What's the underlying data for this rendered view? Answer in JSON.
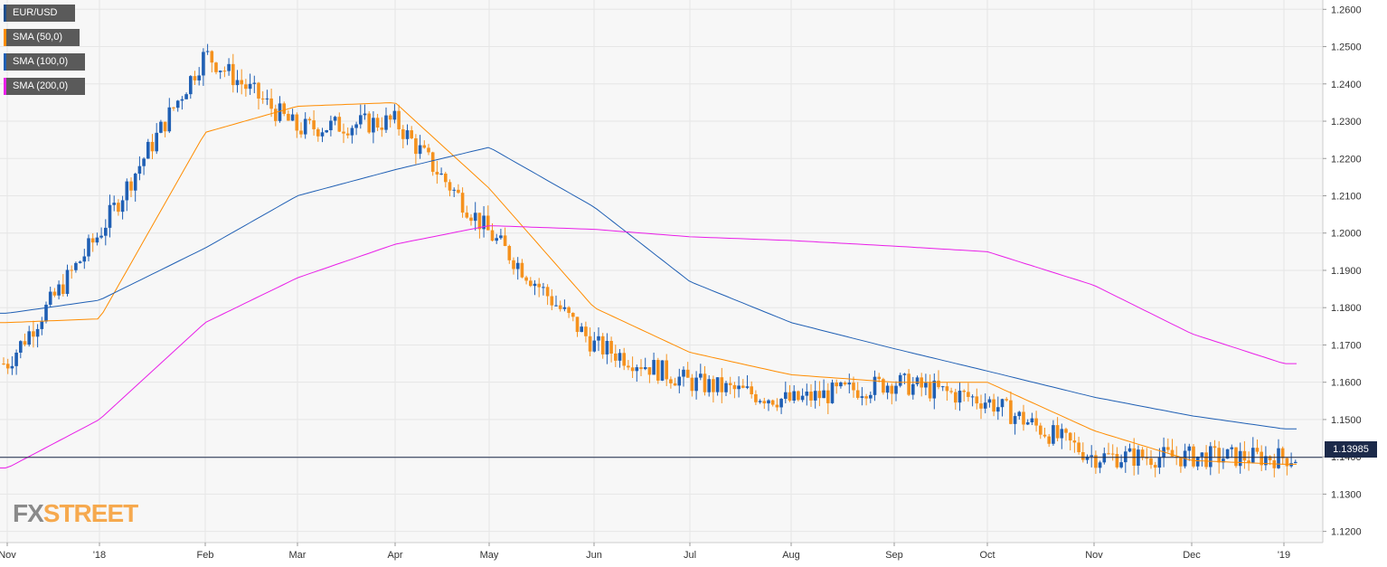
{
  "legend": {
    "items": [
      {
        "label": "EUR/USD",
        "color": "#1f4e8c"
      },
      {
        "label": "SMA (50,0)",
        "color": "#ff8c00"
      },
      {
        "label": "SMA (100,0)",
        "color": "#1f5fb4"
      },
      {
        "label": "SMA (200,0)",
        "color": "#e91ee8"
      }
    ]
  },
  "logo": {
    "fx": "FX",
    "street": "STREET"
  },
  "last_price_label": "1.13985",
  "colors": {
    "up": "#1f5fb4",
    "down": "#f5921e",
    "sma50": "#ff8c00",
    "sma100": "#1f5fb4",
    "sma200": "#e91ee8",
    "grid": "#e6e6e6",
    "bg": "#f7f7f7"
  },
  "chart_data": {
    "type": "candlestick",
    "title": "",
    "x_ticks": [
      "Nov",
      "'18",
      "Feb",
      "Mar",
      "Apr",
      "May",
      "Jun",
      "Jul",
      "Aug",
      "Sep",
      "Oct",
      "Nov",
      "Dec",
      "'19"
    ],
    "y_ticks": [
      "1.2600",
      "1.2500",
      "1.2400",
      "1.2300",
      "1.2200",
      "1.2100",
      "1.2000",
      "1.1900",
      "1.1800",
      "1.1700",
      "1.1600",
      "1.1500",
      "1.1400",
      "1.1300",
      "1.1200"
    ],
    "ylim": [
      1.117,
      1.2625
    ],
    "last_price": 1.13985,
    "close_path": [
      [
        "Nov",
        1.165
      ],
      [
        "'18",
        1.2
      ],
      [
        "Feb",
        1.248
      ],
      [
        "Mar",
        1.228
      ],
      [
        "Apr",
        1.23
      ],
      [
        "May",
        1.2
      ],
      [
        "Jun",
        1.17
      ],
      [
        "Jul",
        1.16
      ],
      [
        "Aug",
        1.155
      ],
      [
        "Sep",
        1.16
      ],
      [
        "Oct",
        1.155
      ],
      [
        "Nov",
        1.14
      ],
      [
        "Dec",
        1.14
      ],
      [
        "'19",
        1.13985
      ]
    ],
    "series": [
      {
        "name": "SMA (50,0)",
        "values": [
          1.176,
          1.177,
          1.227,
          1.234,
          1.235,
          1.212,
          1.18,
          1.168,
          1.162,
          1.16,
          1.16,
          1.147,
          1.139,
          1.138
        ]
      },
      {
        "name": "SMA (100,0)",
        "values": [
          1.1785,
          1.182,
          1.196,
          1.21,
          1.217,
          1.223,
          1.207,
          1.187,
          1.176,
          1.169,
          1.163,
          1.156,
          1.151,
          1.1475
        ]
      },
      {
        "name": "SMA (200,0)",
        "values": [
          1.137,
          1.15,
          1.176,
          1.188,
          1.197,
          1.202,
          1.201,
          1.199,
          1.198,
          1.1965,
          1.195,
          1.186,
          1.173,
          1.165
        ]
      }
    ]
  }
}
